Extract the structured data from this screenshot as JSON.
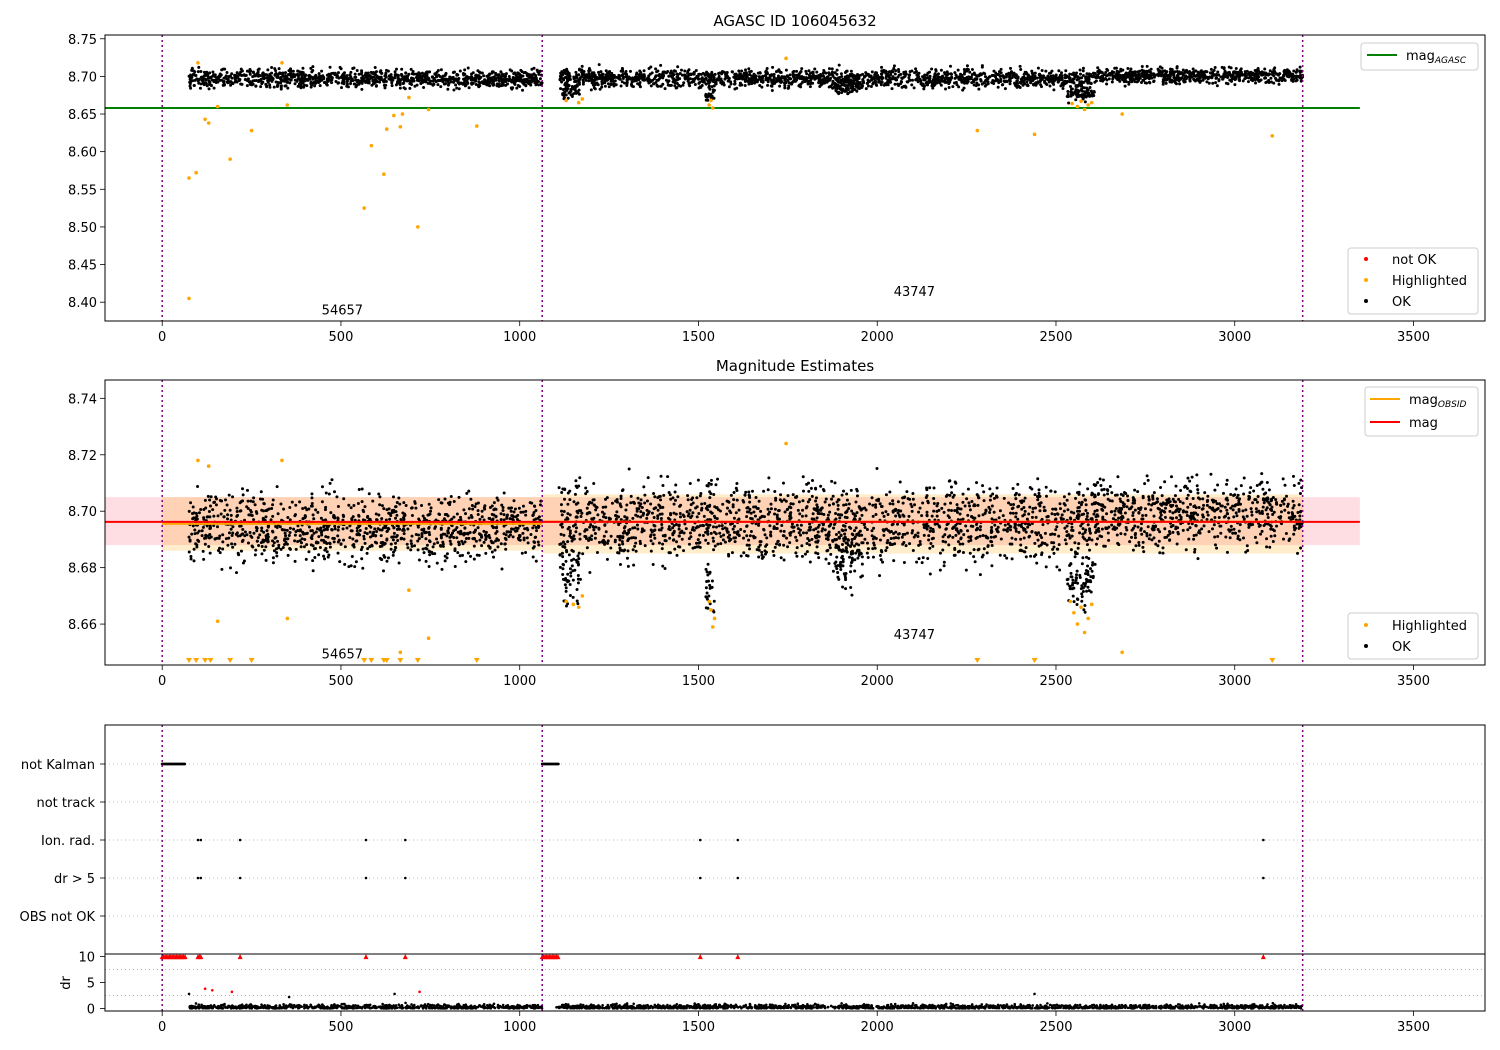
{
  "figure": {
    "title_top": "AGASC ID 106045632",
    "title_mid": "Magnitude Estimates"
  },
  "chart_data": [
    {
      "type": "scatter",
      "title": "AGASC ID 106045632",
      "xlim": [
        -160,
        3700
      ],
      "ylim": [
        8.375,
        8.755
      ],
      "x_ticks": [
        0,
        500,
        1000,
        1500,
        2000,
        2500,
        3000,
        3500
      ],
      "y_ticks": [
        8.4,
        8.45,
        8.5,
        8.55,
        8.6,
        8.65,
        8.7,
        8.75
      ],
      "y_tick_labels": [
        "8.40",
        "8.45",
        "8.50",
        "8.55",
        "8.60",
        "8.65",
        "8.70",
        "8.75"
      ],
      "obsid_boundaries": [
        0,
        1063,
        3190
      ],
      "obsid_labels": [
        {
          "text": "54657",
          "x": 530,
          "y": 8.39
        },
        {
          "text": "43747",
          "x": 2130,
          "y": 8.415
        }
      ],
      "reference_line": {
        "name": "mag_AGASC",
        "label": "mag",
        "subscript": "AGASC",
        "value": 8.658,
        "x_range": [
          -160,
          3350
        ],
        "color": "#008000"
      },
      "ok_segments": [
        {
          "x": [
            75,
            1063
          ],
          "mean": 8.697,
          "spread": 0.006
        },
        {
          "x": [
            1110,
            1500
          ],
          "mean": 8.698,
          "spread": 0.006
        },
        {
          "x": [
            1500,
            2600
          ],
          "mean": 8.697,
          "spread": 0.006
        },
        {
          "x": [
            2600,
            3190
          ],
          "mean": 8.701,
          "spread": 0.005
        }
      ],
      "ok_dips": [
        {
          "x": [
            1120,
            1170
          ],
          "mean": 8.682
        },
        {
          "x": [
            1520,
            1545
          ],
          "mean": 8.675
        },
        {
          "x": [
            1880,
            1960
          ],
          "mean": 8.687
        },
        {
          "x": [
            2530,
            2610
          ],
          "mean": 8.677
        }
      ],
      "highlighted_points": [
        [
          75,
          8.405
        ],
        [
          75,
          8.565
        ],
        [
          95,
          8.572
        ],
        [
          100,
          8.718
        ],
        [
          120,
          8.643
        ],
        [
          130,
          8.638
        ],
        [
          155,
          8.66
        ],
        [
          190,
          8.59
        ],
        [
          250,
          8.628
        ],
        [
          335,
          8.718
        ],
        [
          350,
          8.662
        ],
        [
          565,
          8.525
        ],
        [
          585,
          8.608
        ],
        [
          620,
          8.57
        ],
        [
          628,
          8.63
        ],
        [
          648,
          8.648
        ],
        [
          666,
          8.633
        ],
        [
          672,
          8.65
        ],
        [
          690,
          8.672
        ],
        [
          715,
          8.5
        ],
        [
          745,
          8.656
        ],
        [
          880,
          8.634
        ],
        [
          1130,
          8.668
        ],
        [
          1165,
          8.665
        ],
        [
          1175,
          8.67
        ],
        [
          1530,
          8.662
        ],
        [
          1535,
          8.668
        ],
        [
          1540,
          8.658
        ],
        [
          1745,
          8.724
        ],
        [
          2280,
          8.628
        ],
        [
          2440,
          8.623
        ],
        [
          2545,
          8.664
        ],
        [
          2560,
          8.66
        ],
        [
          2570,
          8.667
        ],
        [
          2580,
          8.656
        ],
        [
          2590,
          8.662
        ],
        [
          2600,
          8.665
        ],
        [
          2685,
          8.65
        ],
        [
          3105,
          8.621
        ]
      ],
      "legend": {
        "items": [
          "not OK",
          "Highlighted",
          "OK"
        ],
        "colors": [
          "#ff0000",
          "#ffa500",
          "#000000"
        ],
        "placement": "lower-right"
      }
    },
    {
      "type": "scatter",
      "title": "Magnitude Estimates",
      "xlim": [
        -160,
        3700
      ],
      "ylim": [
        8.6455,
        8.7465
      ],
      "x_ticks": [
        0,
        500,
        1000,
        1500,
        2000,
        2500,
        3000,
        3500
      ],
      "y_ticks": [
        8.66,
        8.68,
        8.7,
        8.72,
        8.74
      ],
      "y_tick_labels": [
        "8.66",
        "8.68",
        "8.70",
        "8.72",
        "8.74"
      ],
      "obsid_boundaries": [
        0,
        1063,
        3190
      ],
      "obsid_labels": [
        {
          "text": "54657",
          "x": 530,
          "y": 8.6495
        },
        {
          "text": "43747",
          "x": 2130,
          "y": 8.6565
        }
      ],
      "mag_line": {
        "name": "mag",
        "value": 8.6962,
        "band": [
          8.688,
          8.705
        ],
        "x_range": [
          -160,
          3350
        ],
        "color": "#ff0000"
      },
      "mag_obsid_line": {
        "label": "mag",
        "subscript": "OBSID",
        "segments": [
          {
            "x": [
              0,
              1063
            ],
            "value": 8.6955,
            "band": [
              8.686,
              8.705
            ]
          },
          {
            "x": [
              1063,
              3190
            ],
            "value": 8.6963,
            "band": [
              8.685,
              8.706
            ]
          }
        ],
        "color": "#ffa500"
      },
      "ok_segments": [
        {
          "x": [
            75,
            1063
          ],
          "mean": 8.694,
          "spread": 0.006
        },
        {
          "x": [
            1110,
            1500
          ],
          "mean": 8.696,
          "spread": 0.007
        },
        {
          "x": [
            1500,
            2600
          ],
          "mean": 8.696,
          "spread": 0.007
        },
        {
          "x": [
            2600,
            3190
          ],
          "mean": 8.699,
          "spread": 0.006
        }
      ],
      "ok_dips": [
        {
          "x": [
            1120,
            1170
          ],
          "mean": 8.675
        },
        {
          "x": [
            1520,
            1545
          ],
          "mean": 8.672
        },
        {
          "x": [
            1880,
            1960
          ],
          "mean": 8.684
        },
        {
          "x": [
            2530,
            2610
          ],
          "mean": 8.675
        }
      ],
      "highlighted_points": [
        [
          100,
          8.718
        ],
        [
          130,
          8.716
        ],
        [
          155,
          8.661
        ],
        [
          335,
          8.718
        ],
        [
          350,
          8.662
        ],
        [
          666,
          8.65
        ],
        [
          690,
          8.672
        ],
        [
          745,
          8.655
        ],
        [
          1130,
          8.668
        ],
        [
          1150,
          8.667
        ],
        [
          1165,
          8.666
        ],
        [
          1175,
          8.67
        ],
        [
          1530,
          8.668
        ],
        [
          1535,
          8.665
        ],
        [
          1540,
          8.659
        ],
        [
          1545,
          8.662
        ],
        [
          1745,
          8.724
        ],
        [
          2540,
          8.668
        ],
        [
          2550,
          8.664
        ],
        [
          2560,
          8.66
        ],
        [
          2570,
          8.666
        ],
        [
          2580,
          8.657
        ],
        [
          2590,
          8.662
        ],
        [
          2600,
          8.667
        ],
        [
          2685,
          8.65
        ]
      ],
      "lower_limit_markers": [
        75,
        95,
        120,
        135,
        190,
        250,
        565,
        585,
        620,
        628,
        666,
        715,
        880,
        2280,
        2440,
        3105
      ],
      "legend_lines": {
        "items": [
          "mag_OBSID",
          "mag"
        ],
        "colors": [
          "#ffa500",
          "#ff0000"
        ],
        "placement": "upper-right"
      },
      "legend": {
        "items": [
          "Highlighted",
          "OK"
        ],
        "colors": [
          "#ffa500",
          "#000000"
        ],
        "placement": "lower-right"
      }
    },
    {
      "type": "scatter",
      "title": "",
      "xlim": [
        -160,
        3700
      ],
      "categories": [
        "not Kalman",
        "not track",
        "Ion. rad.",
        "dr > 5",
        "OBS not OK"
      ],
      "flags": {
        "not Kalman": {
          "ranges": [
            [
              0,
              65
            ],
            [
              1063,
              1110
            ]
          ]
        },
        "not track": {
          "ranges": []
        },
        "Ion. rad.": {
          "points": [
            100,
            108,
            218,
            570,
            680,
            1505,
            1610,
            3080
          ]
        },
        "dr > 5": {
          "points": [
            100,
            108,
            218,
            570,
            680,
            1505,
            1610,
            3080
          ]
        },
        "OBS not OK": {
          "points": []
        }
      },
      "obsid_boundaries": [
        0,
        1063,
        3190
      ]
    },
    {
      "type": "scatter",
      "title": "",
      "ylabel": "dr",
      "xlim": [
        -160,
        3700
      ],
      "ylim": [
        -0.5,
        10.5
      ],
      "x_ticks": [
        0,
        500,
        1000,
        1500,
        2000,
        2500,
        3000,
        3500
      ],
      "y_ticks": [
        0,
        5,
        10
      ],
      "y_tick_labels": [
        "0",
        "5",
        "10"
      ],
      "capped_value": 10,
      "capped_points": [
        [
          0,
          65
        ],
        [
          100,
          108
        ],
        [
          218
        ],
        [
          570
        ],
        [
          680
        ],
        [
          1063,
          1110
        ],
        [
          1505
        ],
        [
          1610
        ],
        [
          3080
        ]
      ],
      "scatter_points": [
        [
          75,
          2.8
        ],
        [
          120,
          3.8
        ],
        [
          140,
          3.5
        ],
        [
          195,
          3.2
        ],
        [
          355,
          2.2
        ],
        [
          650,
          2.8
        ],
        [
          720,
          3.2
        ],
        [
          2440,
          2.8
        ]
      ],
      "obsid_boundaries": [
        0,
        1063,
        3190
      ]
    }
  ]
}
